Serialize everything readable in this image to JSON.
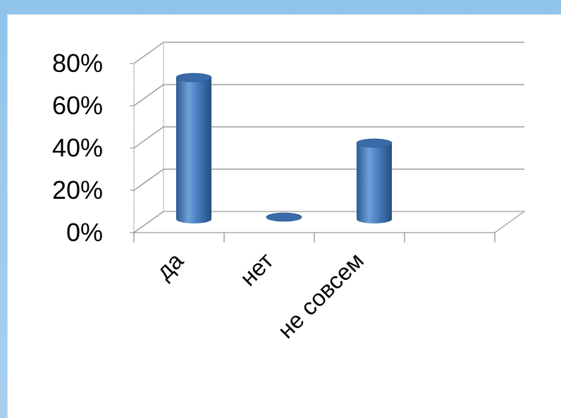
{
  "chart_data": {
    "type": "bar",
    "categories": [
      "да",
      "нет",
      "не совсем"
    ],
    "values": [
      67,
      1,
      36
    ],
    "ylim": [
      0,
      80
    ],
    "yticks": [
      0,
      20,
      40,
      60,
      80
    ],
    "ytick_labels": [
      "0%",
      "20%",
      "40%",
      "60%",
      "80%"
    ],
    "grid": true,
    "bar_color": "#4a7fc1"
  }
}
